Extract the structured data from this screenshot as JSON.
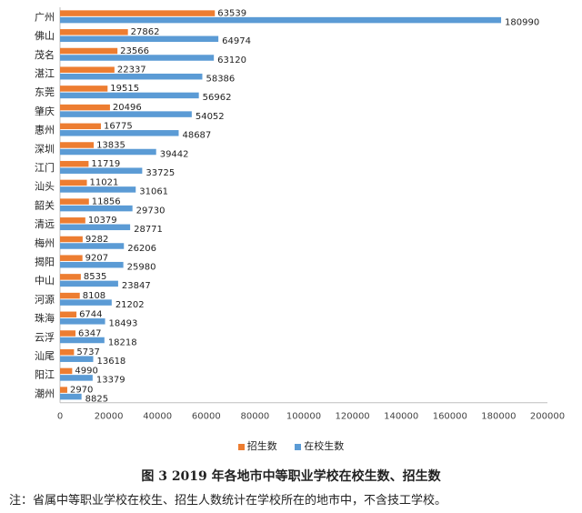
{
  "colors": {
    "enroll": "#ED7D31",
    "students": "#5B9BD5",
    "axis": "#bfbfbf",
    "text": "#222222"
  },
  "chart_data": {
    "type": "bar",
    "orientation": "horizontal",
    "categories": [
      "广州",
      "佛山",
      "茂名",
      "湛江",
      "东莞",
      "肇庆",
      "惠州",
      "深圳",
      "江门",
      "汕头",
      "韶关",
      "清远",
      "梅州",
      "揭阳",
      "中山",
      "河源",
      "珠海",
      "云浮",
      "汕尾",
      "阳江",
      "潮州"
    ],
    "series": [
      {
        "name": "招生数",
        "values": [
          63539,
          27862,
          23566,
          22337,
          19515,
          20496,
          16775,
          13835,
          11719,
          11021,
          11856,
          10379,
          9282,
          9207,
          8535,
          8108,
          6744,
          6347,
          5737,
          4990,
          2970
        ]
      },
      {
        "name": "在校生数",
        "values": [
          180990,
          64974,
          63120,
          58386,
          56962,
          54052,
          48687,
          39442,
          33725,
          31061,
          29730,
          28771,
          26206,
          25980,
          23847,
          21202,
          18493,
          18218,
          13618,
          13379,
          8825
        ]
      }
    ],
    "xlim": [
      0,
      200000
    ],
    "xticks": [
      "0",
      "20000",
      "40000",
      "60000",
      "80000",
      "100000",
      "120000",
      "140000",
      "160000",
      "180000",
      "200000"
    ],
    "legend_position": "bottom",
    "grid": false
  },
  "caption": "图 3 2019 年各地市中等职业学校在校生数、招生数",
  "note": "注：省属中等职业学校在校生、招生人数统计在学校所在的地市中，不含技工学校。"
}
